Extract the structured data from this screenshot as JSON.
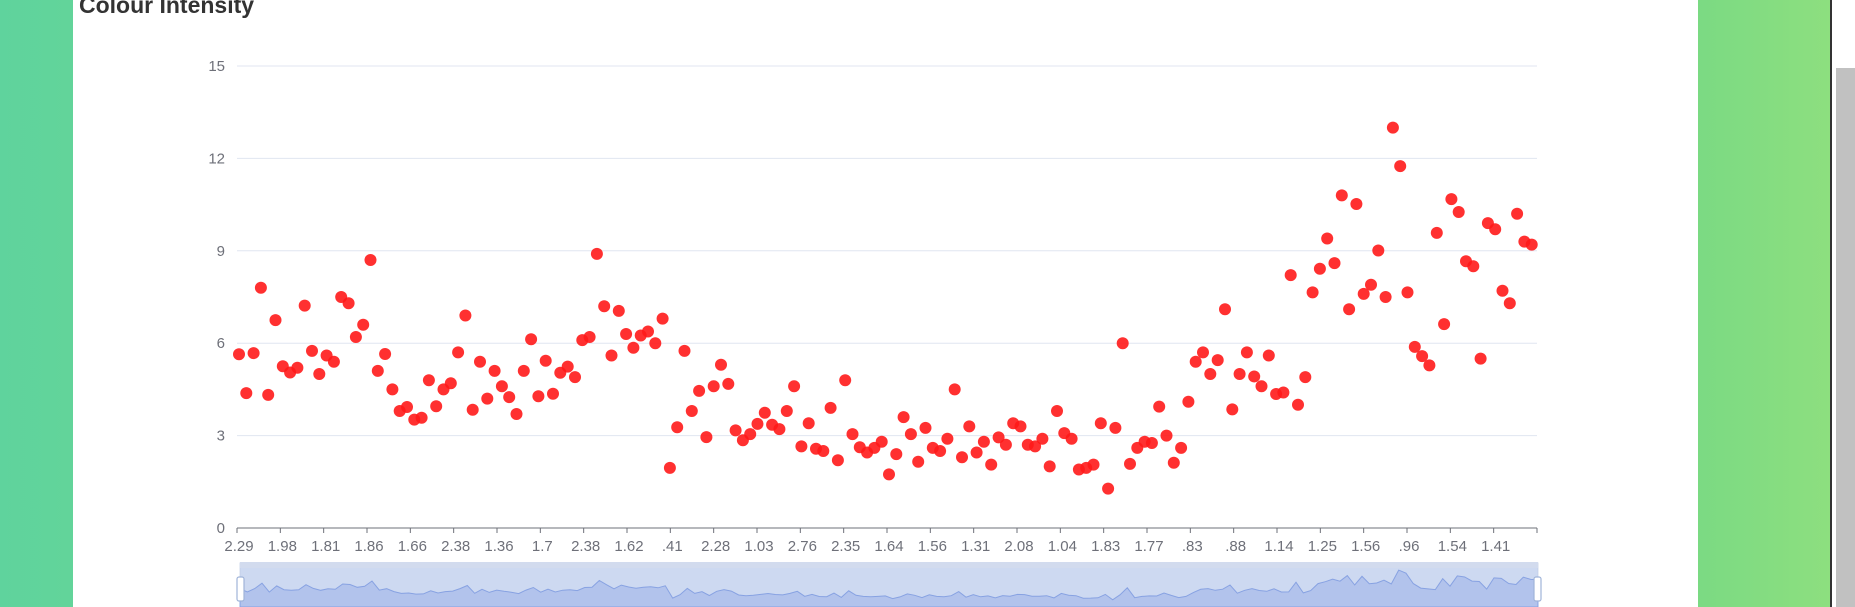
{
  "page": {
    "title": "Colour Intensity"
  },
  "chart_data": {
    "type": "scatter",
    "title": "Colour Intensity",
    "xlabel": "",
    "ylabel": "",
    "ylim": [
      0,
      15
    ],
    "yticks": [
      0,
      3,
      6,
      9,
      12,
      15
    ],
    "x_tick_labels": [
      "2.29",
      "1.98",
      "1.81",
      "1.86",
      "1.66",
      "2.38",
      "1.36",
      "1.7",
      "2.38",
      "1.62",
      ".41",
      "2.28",
      "1.03",
      "2.76",
      "2.35",
      "1.64",
      "1.56",
      "1.31",
      "2.08",
      "1.04",
      "1.83",
      "1.77",
      ".83",
      ".88",
      "1.14",
      "1.25",
      "1.56",
      ".96",
      "1.54",
      "1.41"
    ],
    "grid": true,
    "point_color": "#ff1a1a",
    "series": [
      {
        "values": [
          5.64,
          4.38,
          5.68,
          7.8,
          4.32,
          6.75,
          5.25,
          5.05,
          5.2,
          7.22,
          5.75,
          5.0,
          5.6,
          5.4,
          7.5,
          7.3,
          6.2,
          6.6,
          8.7,
          5.1,
          5.65,
          4.5,
          3.8,
          3.93,
          3.52,
          3.58,
          4.8,
          3.95,
          4.5,
          4.7,
          5.7,
          6.9,
          3.84,
          5.4,
          4.2,
          5.1,
          4.6,
          4.25,
          3.7,
          5.1,
          6.13,
          4.28,
          5.43,
          4.36,
          5.04,
          5.24,
          4.9,
          6.1,
          6.2,
          8.9,
          7.2,
          5.6,
          7.05,
          6.3,
          5.85,
          6.25,
          6.38,
          6.0,
          6.8,
          1.95,
          3.27,
          5.75,
          3.8,
          4.45,
          2.95,
          4.6,
          5.3,
          4.68,
          3.17,
          2.85,
          3.05,
          3.38,
          3.74,
          3.35,
          3.21,
          3.8,
          4.6,
          2.65,
          3.4,
          2.57,
          2.5,
          3.9,
          2.2,
          4.8,
          3.05,
          2.62,
          2.45,
          2.6,
          2.8,
          1.74,
          2.4,
          3.6,
          3.05,
          2.15,
          3.25,
          2.6,
          2.5,
          2.9,
          4.5,
          2.3,
          3.3,
          2.45,
          2.8,
          2.06,
          2.94,
          2.7,
          3.4,
          3.3,
          2.7,
          2.65,
          2.9,
          2.0,
          3.8,
          3.08,
          2.9,
          1.9,
          1.95,
          2.06,
          3.4,
          1.28,
          3.25,
          6.0,
          2.08,
          2.6,
          2.8,
          2.76,
          3.94,
          3.0,
          2.12,
          2.6,
          4.1,
          5.4,
          5.7,
          5.0,
          5.45,
          7.1,
          3.85,
          5.0,
          5.7,
          4.92,
          4.6,
          5.6,
          4.35,
          4.4,
          8.21,
          4.0,
          4.9,
          7.65,
          8.42,
          9.4,
          8.6,
          10.8,
          7.1,
          10.52,
          7.6,
          7.9,
          9.01,
          7.5,
          13.0,
          11.75,
          7.65,
          5.88,
          5.58,
          5.28,
          9.58,
          6.62,
          10.68,
          10.26,
          8.66,
          8.5,
          5.5,
          9.899,
          9.7,
          7.7,
          7.3,
          10.2,
          9.3,
          9.2
        ]
      }
    ],
    "slider": {
      "start_pct": 0,
      "end_pct": 100
    }
  }
}
